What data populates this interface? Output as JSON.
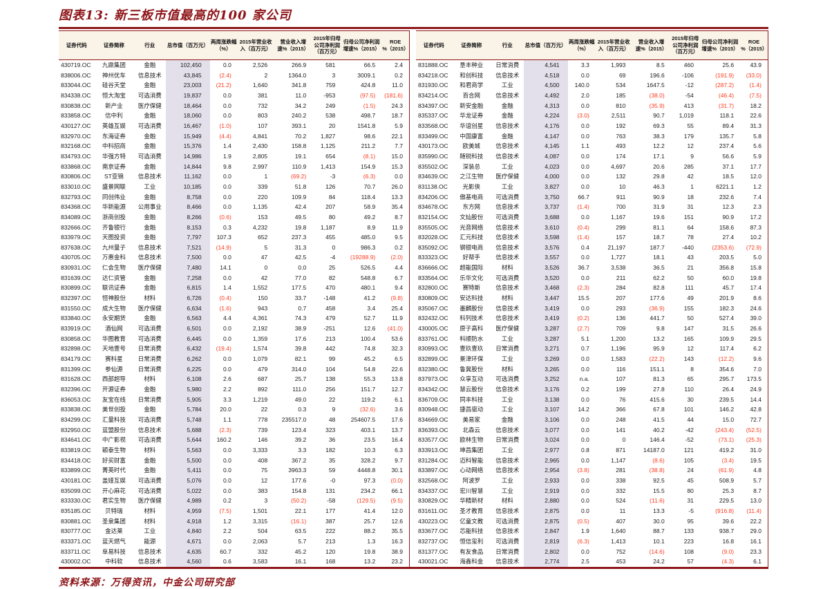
{
  "title": "图表13: 新三板市值最高的100 家公司",
  "source_note": "资料来源：万得资讯，中金公司研究部",
  "colors": {
    "accent": "#8d1518",
    "negative": "#fa3b1e",
    "mktcap_shade": "#e3e0eb",
    "header_bg": "#faf3e8"
  },
  "table": {
    "headers": [
      "证券代码",
      "证券简称",
      "行业",
      "总市值（百万元）",
      "两周涨跌幅（%）",
      "2015年营业收入（百万元）",
      "营业收入增速%（2015）",
      "2015年归母公司净利润（百万元）",
      "归母公司净利润增速%（2015）",
      "ROE %（2015）"
    ],
    "left_rows": [
      [
        "430719.OC",
        "九鼎集团",
        "金融",
        "102,450",
        "0.0",
        "2,526",
        "266.9",
        "581",
        "66.5",
        "2.4"
      ],
      [
        "838006.OC",
        "神州优车",
        "信息技术",
        "43,845",
        "(2.4)",
        "2",
        "1364.0",
        "3",
        "3009.1",
        "0.2"
      ],
      [
        "833044.OC",
        "硅谷天堂",
        "金融",
        "23,003",
        "(21.2)",
        "1,640",
        "341.8",
        "759",
        "424.8",
        "11.0"
      ],
      [
        "834338.OC",
        "恒大淘宝",
        "可选消费",
        "19,837",
        "0.0",
        "381",
        "11.0",
        "-953",
        "(97.5)",
        "(181.6)"
      ],
      [
        "830838.OC",
        "新产业",
        "医疗保健",
        "18,464",
        "0.0",
        "732",
        "34.2",
        "249",
        "(1.5)",
        "24.3"
      ],
      [
        "833858.OC",
        "信中利",
        "金融",
        "18,060",
        "0.0",
        "803",
        "240.2",
        "538",
        "498.7",
        "18.7"
      ],
      [
        "430127.OC",
        "英雄互娱",
        "可选消费",
        "16,467",
        "(1.0)",
        "107",
        "393.1",
        "20",
        "1541.8",
        "5.9"
      ],
      [
        "832970.OC",
        "东海证券",
        "金融",
        "15,949",
        "(4.4)",
        "4,841",
        "70.2",
        "1,827",
        "98.6",
        "22.1"
      ],
      [
        "832168.OC",
        "中科招商",
        "金融",
        "15,376",
        "1.4",
        "2,430",
        "158.8",
        "1,125",
        "211.2",
        "7.7"
      ],
      [
        "834793.OC",
        "华强方特",
        "可选消费",
        "14,986",
        "1.9",
        "2,805",
        "19.1",
        "654",
        "(8.1)",
        "15.0"
      ],
      [
        "833868.OC",
        "南京证券",
        "金融",
        "14,844",
        "9.8",
        "2,997",
        "110.9",
        "1,413",
        "154.9",
        "15.3"
      ],
      [
        "830806.OC",
        "ST亚锦",
        "信息技术",
        "11,162",
        "0.0",
        "1",
        "(69.2)",
        "-3",
        "(6.3)",
        "0.0"
      ],
      [
        "833010.OC",
        "盛景网联",
        "工业",
        "10,185",
        "0.0",
        "339",
        "51.8",
        "126",
        "70.7",
        "26.0"
      ],
      [
        "832793.OC",
        "同创伟业",
        "金融",
        "8,758",
        "0.0",
        "220",
        "109.9",
        "84",
        "118.4",
        "13.3"
      ],
      [
        "834368.OC",
        "华新能源",
        "公用事业",
        "8,466",
        "0.0",
        "1,135",
        "42.4",
        "207",
        "58.9",
        "35.4"
      ],
      [
        "834089.OC",
        "浙商创投",
        "金融",
        "8,266",
        "(0.6)",
        "153",
        "49.5",
        "80",
        "49.2",
        "8.7"
      ],
      [
        "832666.OC",
        "齐鲁银行",
        "金融",
        "8,153",
        "0.3",
        "4,232",
        "19.8",
        "1,187",
        "8.9",
        "11.9"
      ],
      [
        "833979.OC",
        "天图投资",
        "金融",
        "7,797",
        "107.3",
        "652",
        "237.3",
        "455",
        "485.0",
        "9.5"
      ],
      [
        "837638.OC",
        "九州量子",
        "信息技术",
        "7,521",
        "(14.9)",
        "5",
        "31.3",
        "0",
        "986.3",
        "0.2"
      ],
      [
        "430705.OC",
        "万惠金科",
        "信息技术",
        "7,500",
        "0.0",
        "47",
        "42.5",
        "-4",
        "(19288.9)",
        "(2.0)"
      ],
      [
        "830931.OC",
        "仁会生物",
        "医疗保健",
        "7,480",
        "14.1",
        "0",
        "0.0",
        "25",
        "526.5",
        "4.4"
      ],
      [
        "831639.OC",
        "达仁资管",
        "金融",
        "7,258",
        "0.0",
        "42",
        "77.0",
        "82",
        "548.8",
        "6.7"
      ],
      [
        "830899.OC",
        "联讯证券",
        "金融",
        "6,815",
        "1.4",
        "1,552",
        "177.5",
        "470",
        "480.1",
        "9.4"
      ],
      [
        "832397.OC",
        "恒神股份",
        "材料",
        "6,726",
        "(0.4)",
        "150",
        "33.7",
        "-148",
        "41.2",
        "(9.8)"
      ],
      [
        "831550.OC",
        "成大生物",
        "医疗保健",
        "6,634",
        "(1.6)",
        "943",
        "0.7",
        "458",
        "3.4",
        "25.4"
      ],
      [
        "833840.OC",
        "永安期货",
        "金融",
        "6,563",
        "4.4",
        "4,361",
        "74.3",
        "479",
        "52.7",
        "11.9"
      ],
      [
        "833919.OC",
        "酒仙网",
        "可选消费",
        "6,501",
        "0.0",
        "2,192",
        "38.9",
        "-251",
        "12.6",
        "(41.0)"
      ],
      [
        "830858.OC",
        "华图教育",
        "可选消费",
        "6,445",
        "0.0",
        "1,359",
        "17.6",
        "213",
        "100.4",
        "53.6"
      ],
      [
        "832898.OC",
        "天地壹号",
        "日常消费",
        "6,432",
        "(19.4)",
        "1,574",
        "39.8",
        "442",
        "74.8",
        "32.3"
      ],
      [
        "834179.OC",
        "赛科星",
        "日常消费",
        "6,262",
        "0.0",
        "1,079",
        "82.1",
        "99",
        "45.2",
        "6.5"
      ],
      [
        "831399.OC",
        "参仙源",
        "日常消费",
        "6,225",
        "0.0",
        "479",
        "314.0",
        "104",
        "54.8",
        "22.6"
      ],
      [
        "831628.OC",
        "西部超导",
        "材料",
        "6,108",
        "2.6",
        "687",
        "25.7",
        "138",
        "55.3",
        "13.8"
      ],
      [
        "832396.OC",
        "开源证券",
        "金融",
        "5,980",
        "2.2",
        "892",
        "111.0",
        "256",
        "151.7",
        "12.7"
      ],
      [
        "836053.OC",
        "友宝在线",
        "日常消费",
        "5,905",
        "3.3",
        "1,219",
        "49.0",
        "22",
        "119.2",
        "6.1"
      ],
      [
        "833838.OC",
        "美世创投",
        "金融",
        "5,784",
        "20.0",
        "22",
        "0.3",
        "9",
        "(32.6)",
        "3.6"
      ],
      [
        "834299.OC",
        "汇量科技",
        "可选消费",
        "5,748",
        "1.1",
        "778",
        "235517.0",
        "48",
        "254607.5",
        "17.6"
      ],
      [
        "832950.OC",
        "蓝盟股份",
        "信息技术",
        "5,688",
        "(2.3)",
        "739",
        "123.4",
        "323",
        "403.1",
        "13.7"
      ],
      [
        "834641.OC",
        "中广影视",
        "可选消费",
        "5,644",
        "160.2",
        "146",
        "39.2",
        "36",
        "23.5",
        "16.4"
      ],
      [
        "833819.OC",
        "颖泰生物",
        "材料",
        "5,563",
        "0.0",
        "3,333",
        "3.3",
        "182",
        "10.3",
        "6.3"
      ],
      [
        "834418.OC",
        "好买财富",
        "金融",
        "5,500",
        "0.0",
        "408",
        "367.2",
        "35",
        "328.2",
        "9.7"
      ],
      [
        "833899.OC",
        "菁英时代",
        "金融",
        "5,411",
        "0.0",
        "75",
        "3963.3",
        "59",
        "4448.8",
        "30.1"
      ],
      [
        "430181.OC",
        "盖娅互娱",
        "可选消费",
        "5,076",
        "0.0",
        "12",
        "177.6",
        "-0",
        "97.3",
        "(0.0)"
      ],
      [
        "835099.OC",
        "开心麻花",
        "可选消费",
        "5,022",
        "0.0",
        "383",
        "154.8",
        "131",
        "234.2",
        "66.1"
      ],
      [
        "833330.OC",
        "君实生物",
        "医疗保健",
        "4,989",
        "0.2",
        "3",
        "(50.2)",
        "-58",
        "(129.5)",
        "(9.5)"
      ],
      [
        "835185.OC",
        "贝特瑞",
        "材料",
        "4,959",
        "(7.5)",
        "1,501",
        "22.1",
        "177",
        "41.4",
        "12.0"
      ],
      [
        "830881.OC",
        "圣泉集团",
        "材料",
        "4,918",
        "1.2",
        "3,315",
        "(16.1)",
        "387",
        "25.7",
        "12.6"
      ],
      [
        "830777.OC",
        "金达莱",
        "工业",
        "4,840",
        "2.2",
        "504",
        "63.5",
        "222",
        "88.2",
        "35.5"
      ],
      [
        "833371.OC",
        "蓝天燃气",
        "能源",
        "4,671",
        "0.0",
        "2,063",
        "5.7",
        "213",
        "1.3",
        "16.3"
      ],
      [
        "833711.OC",
        "阜易科技",
        "信息技术",
        "4,635",
        "60.7",
        "332",
        "45.2",
        "120",
        "19.8",
        "38.9"
      ],
      [
        "430002.OC",
        "中科软",
        "信息技术",
        "4,560",
        "0.6",
        "3,583",
        "16.1",
        "168",
        "13.2",
        "23.2"
      ]
    ],
    "right_rows": [
      [
        "831888.OC",
        "垦丰种业",
        "日常消费",
        "4,541",
        "3.3",
        "1,993",
        "8.5",
        "460",
        "25.6",
        "43.9"
      ],
      [
        "834218.OC",
        "和创科技",
        "信息技术",
        "4,518",
        "0.0",
        "69",
        "196.6",
        "-106",
        "(191.9)",
        "(33.0)"
      ],
      [
        "831930.OC",
        "和君商学",
        "工业",
        "4,500",
        "140.0",
        "534",
        "1647.5",
        "-12",
        "(287.2)",
        "(1.4)"
      ],
      [
        "834214.OC",
        "百合网",
        "信息技术",
        "4,492",
        "2.0",
        "185",
        "(38.0)",
        "-54",
        "(46.4)",
        "(7.5)"
      ],
      [
        "834397.OC",
        "新安金融",
        "金融",
        "4,313",
        "0.0",
        "810",
        "(35.9)",
        "413",
        "(31.7)",
        "18.2"
      ],
      [
        "835337.OC",
        "华龙证券",
        "金融",
        "4,224",
        "(3.0)",
        "2,511",
        "90.7",
        "1,019",
        "118.1",
        "22.6"
      ],
      [
        "833568.OC",
        "华谊创星",
        "信息技术",
        "4,176",
        "0.0",
        "192",
        "69.3",
        "55",
        "89.4",
        "31.3"
      ],
      [
        "833499.OC",
        "中国康富",
        "金融",
        "4,147",
        "0.0",
        "763",
        "38.3",
        "179",
        "135.7",
        "5.8"
      ],
      [
        "430173.OC",
        "欧美城",
        "信息技术",
        "4,145",
        "1.1",
        "493",
        "12.2",
        "12",
        "237.4",
        "5.6"
      ],
      [
        "835990.OC",
        "随锐科技",
        "信息技术",
        "4,087",
        "0.0",
        "174",
        "17.1",
        "9",
        "56.6",
        "5.9"
      ],
      [
        "835502.OC",
        "深装总",
        "工业",
        "4,023",
        "0.0",
        "4,697",
        "20.6",
        "285",
        "37.1",
        "17.7"
      ],
      [
        "834639.OC",
        "之江生物",
        "医疗保健",
        "4,000",
        "0.0",
        "132",
        "29.8",
        "42",
        "18.5",
        "12.0"
      ],
      [
        "831138.OC",
        "光影侠",
        "工业",
        "3,827",
        "0.0",
        "10",
        "46.3",
        "1",
        "6221.1",
        "1.2"
      ],
      [
        "834206.OC",
        "傲基电商",
        "可选消费",
        "3,750",
        "66.7",
        "911",
        "90.9",
        "18",
        "232.6",
        "7.4"
      ],
      [
        "834678.OC",
        "东方网",
        "信息技术",
        "3,737",
        "(1.4)",
        "700",
        "31.9",
        "31",
        "12.3",
        "2.3"
      ],
      [
        "832154.OC",
        "文灿股份",
        "可选消费",
        "3,688",
        "0.0",
        "1,167",
        "19.6",
        "151",
        "90.9",
        "17.2"
      ],
      [
        "835505.OC",
        "光音网络",
        "信息技术",
        "3,610",
        "(0.4)",
        "299",
        "81.1",
        "64",
        "158.6",
        "87.3"
      ],
      [
        "832028.OC",
        "汇元科技",
        "信息技术",
        "3,598",
        "(1.4)",
        "157",
        "18.7",
        "78",
        "27.4",
        "10.2"
      ],
      [
        "835092.OC",
        "钢银电商",
        "信息技术",
        "3,576",
        "0.4",
        "21,197",
        "187.7",
        "-440",
        "(2353.6)",
        "(72.9)"
      ],
      [
        "833323.OC",
        "好帮手",
        "信息技术",
        "3,557",
        "0.0",
        "1,727",
        "18.1",
        "43",
        "203.5",
        "5.0"
      ],
      [
        "836666.OC",
        "超能国际",
        "材料",
        "3,526",
        "36.7",
        "3,538",
        "36.5",
        "21",
        "356.8",
        "15.8"
      ],
      [
        "833564.OC",
        "乐华文化",
        "可选消费",
        "3,520",
        "0.0",
        "211",
        "62.2",
        "50",
        "60.0",
        "19.8"
      ],
      [
        "832800.OC",
        "赛特斯",
        "信息技术",
        "3,468",
        "(2.3)",
        "284",
        "82.8",
        "111",
        "45.7",
        "17.4"
      ],
      [
        "830809.OC",
        "安达科技",
        "材料",
        "3,447",
        "15.5",
        "207",
        "177.6",
        "49",
        "201.9",
        "8.6"
      ],
      [
        "835067.OC",
        "墨麟股份",
        "信息技术",
        "3,419",
        "0.0",
        "293",
        "(36.9)",
        "155",
        "182.3",
        "24.6"
      ],
      [
        "832432.OC",
        "科列技术",
        "信息技术",
        "3,419",
        "(0.2)",
        "136",
        "441.7",
        "50",
        "527.4",
        "39.0"
      ],
      [
        "430005.OC",
        "原子高科",
        "医疗保健",
        "3,287",
        "(2.7)",
        "709",
        "9.8",
        "147",
        "31.5",
        "26.6"
      ],
      [
        "833761.OC",
        "科顺防水",
        "工业",
        "3,287",
        "5.1",
        "1,200",
        "13.2",
        "165",
        "109.9",
        "29.5"
      ],
      [
        "830993.OC",
        "壹玖壹玖",
        "日常消费",
        "3,271",
        "0.7",
        "1,196",
        "95.9",
        "12",
        "117.4",
        "6.2"
      ],
      [
        "832899.OC",
        "景津环保",
        "工业",
        "3,269",
        "0.0",
        "1,583",
        "(22.2)",
        "143",
        "(12.2)",
        "9.6"
      ],
      [
        "832380.OC",
        "鲁冀股份",
        "材料",
        "3,265",
        "0.0",
        "116",
        "151.1",
        "8",
        "354.6",
        "7.0"
      ],
      [
        "837973.OC",
        "众享互动",
        "可选消费",
        "3,252",
        "n.a.",
        "107",
        "81.3",
        "65",
        "295.7",
        "173.5"
      ],
      [
        "834342.OC",
        "慧云股份",
        "信息技术",
        "3,176",
        "0.2",
        "199",
        "27.8",
        "110",
        "26.4",
        "24.9"
      ],
      [
        "836709.OC",
        "同丰科技",
        "工业",
        "3,138",
        "0.0",
        "76",
        "415.6",
        "30",
        "239.5",
        "14.4"
      ],
      [
        "830948.OC",
        "捷昌驱动",
        "工业",
        "3,107",
        "14.2",
        "366",
        "67.8",
        "101",
        "146.2",
        "42.8"
      ],
      [
        "834669.OC",
        "美易家",
        "金融",
        "3,106",
        "0.0",
        "248",
        "41.5",
        "44",
        "15.0",
        "72.7"
      ],
      [
        "836393.OC",
        "北森云",
        "信息技术",
        "3,077",
        "0.0",
        "141",
        "40.2",
        "-42",
        "(243.4)",
        "(52.5)"
      ],
      [
        "833577.OC",
        "欧林生物",
        "日常消费",
        "3,024",
        "0.0",
        "0",
        "146.4",
        "-52",
        "(73.1)",
        "(25.3)"
      ],
      [
        "833913.OC",
        "坤昌集团",
        "工业",
        "2,977",
        "0.8",
        "871",
        "14187.0",
        "121",
        "419.2",
        "31.0"
      ],
      [
        "831284.OC",
        "迈科智能",
        "信息技术",
        "2,965",
        "0.0",
        "1,147",
        "(8.6)",
        "105",
        "(3.4)",
        "19.5"
      ],
      [
        "833897.OC",
        "心动网络",
        "信息技术",
        "2,954",
        "(3.8)",
        "281",
        "(38.8)",
        "24",
        "(61.9)",
        "4.8"
      ],
      [
        "832568.OC",
        "阿波罗",
        "工业",
        "2,933",
        "0.0",
        "338",
        "92.5",
        "45",
        "508.9",
        "5.7"
      ],
      [
        "834337.OC",
        "宏川智慧",
        "工业",
        "2,919",
        "0.0",
        "332",
        "15.5",
        "80",
        "25.3",
        "8.7"
      ],
      [
        "830829.OC",
        "华精新材",
        "材料",
        "2,880",
        "0.0",
        "524",
        "(11.6)",
        "31",
        "229.5",
        "13.0"
      ],
      [
        "831611.OC",
        "圣才教育",
        "信息技术",
        "2,875",
        "0.0",
        "11",
        "13.3",
        "-5",
        "(916.8)",
        "(11.4)"
      ],
      [
        "430223.OC",
        "亿童文教",
        "可选消费",
        "2,875",
        "(0.5)",
        "407",
        "30.0",
        "95",
        "39.6",
        "22.2"
      ],
      [
        "833677.OC",
        "芯能科技",
        "信息技术",
        "2,847",
        "1.9",
        "1,640",
        "88.7",
        "133",
        "938.7",
        "29.0"
      ],
      [
        "832737.OC",
        "恒信玺利",
        "可选消费",
        "2,819",
        "(6.3)",
        "1,413",
        "10.1",
        "223",
        "16.8",
        "16.1"
      ],
      [
        "831377.OC",
        "有友食品",
        "日常消费",
        "2,802",
        "0.0",
        "752",
        "(14.6)",
        "108",
        "(9.0)",
        "23.3"
      ],
      [
        "430021.OC",
        "海鑫科金",
        "信息技术",
        "2,774",
        "2.5",
        "453",
        "24.2",
        "57",
        "(4.3)",
        "6.1"
      ]
    ]
  }
}
